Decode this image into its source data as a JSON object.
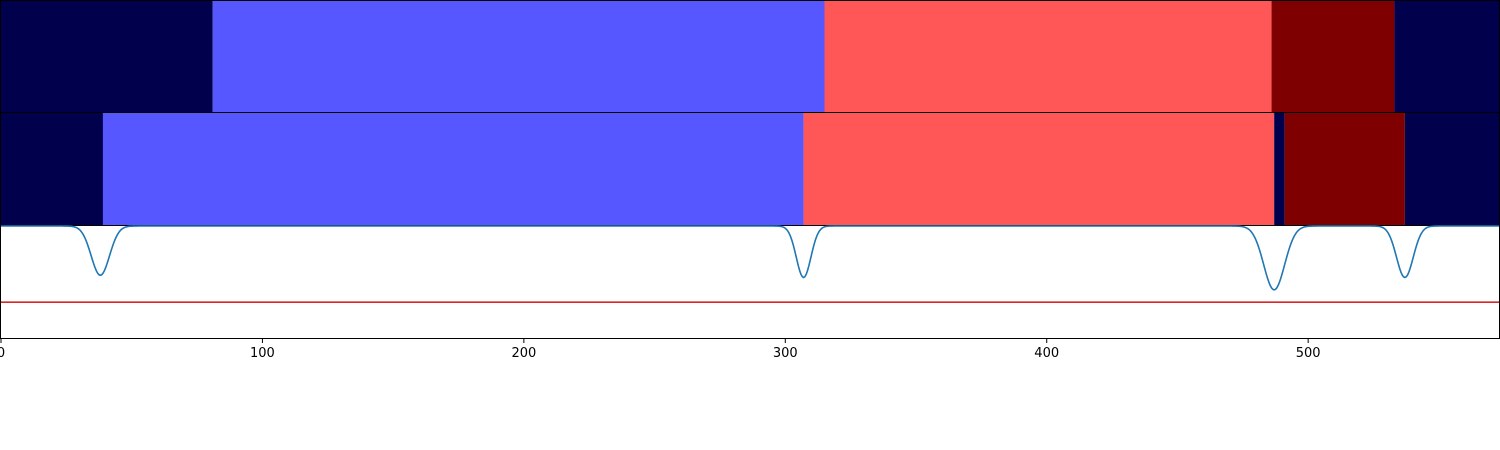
{
  "chart_data": {
    "type": "segmentation-timeline",
    "xlim": [
      0,
      573
    ],
    "x_ticks": [
      0,
      100,
      200,
      300,
      400,
      500
    ],
    "x_tick_labels": [
      "0",
      "100",
      "200",
      "300",
      "400",
      "500"
    ],
    "tracks": [
      {
        "segments": [
          {
            "start": 0,
            "end": 81,
            "color": "#00004c"
          },
          {
            "start": 81,
            "end": 315,
            "color": "#5757ff"
          },
          {
            "start": 315,
            "end": 486,
            "color": "#ff5757"
          },
          {
            "start": 486,
            "end": 533,
            "color": "#7f0000"
          },
          {
            "start": 533,
            "end": 573,
            "color": "#00004c"
          }
        ]
      },
      {
        "segments": [
          {
            "start": 0,
            "end": 39,
            "color": "#00004c"
          },
          {
            "start": 39,
            "end": 307,
            "color": "#5757ff"
          },
          {
            "start": 307,
            "end": 487,
            "color": "#ff5757"
          },
          {
            "start": 487,
            "end": 491,
            "color": "#00004c"
          },
          {
            "start": 491,
            "end": 537,
            "color": "#7f0000"
          },
          {
            "start": 537,
            "end": 573,
            "color": "#00004c"
          }
        ]
      }
    ],
    "signal": {
      "color": "#1f77b4",
      "ylim": [
        0,
        1
      ],
      "baseline": 1.0,
      "dips": [
        {
          "center": 38,
          "depth": 0.44,
          "width": 3.5
        },
        {
          "center": 307,
          "depth": 0.46,
          "width": 2.8
        },
        {
          "center": 487,
          "depth": 0.57,
          "width": 4.0
        },
        {
          "center": 537,
          "depth": 0.46,
          "width": 3.2
        }
      ]
    },
    "threshold": {
      "value": 0.32,
      "color": "#d62728"
    }
  }
}
